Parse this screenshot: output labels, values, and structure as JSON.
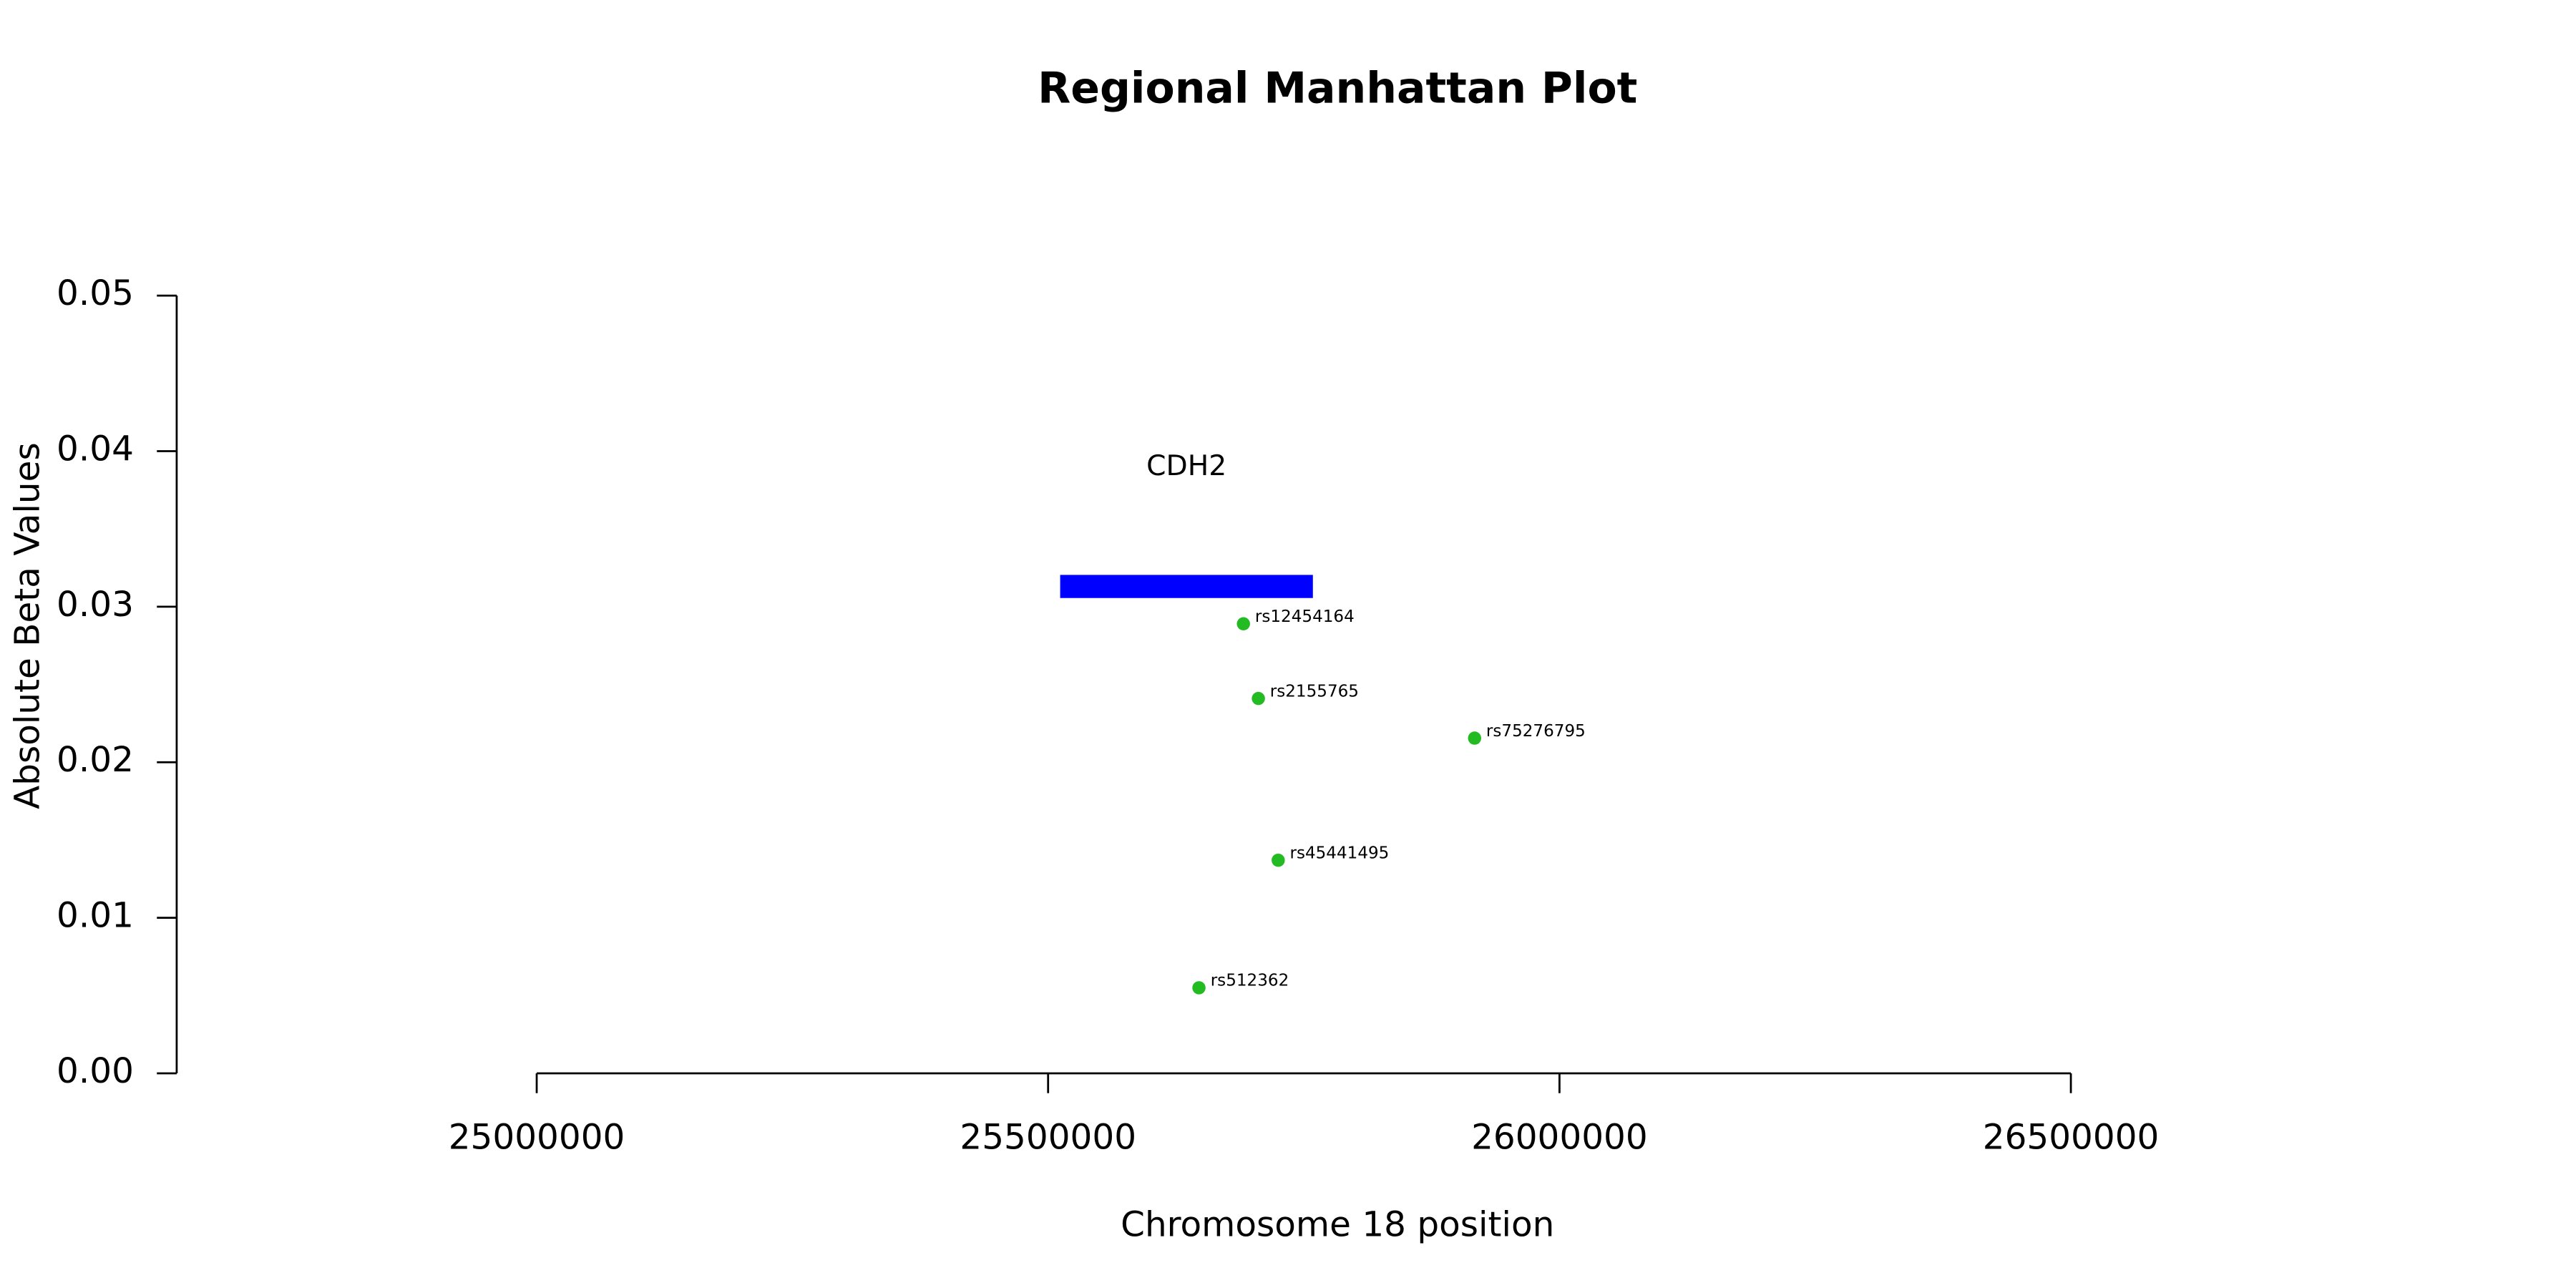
{
  "chart_data": {
    "type": "scatter",
    "title": "Regional Manhattan Plot",
    "x_label": "Chromosome 18 position",
    "y_label": "Absolute Beta Values",
    "xlim": [
      24648000,
      26918000
    ],
    "xticks": [
      25000000,
      25500000,
      26000000,
      26500000
    ],
    "ylim": [
      0,
      0.05
    ],
    "yticks": [
      {
        "value": 0,
        "label": "0.00"
      },
      {
        "value": 0.01,
        "label": "0.01"
      },
      {
        "value": 0.02,
        "label": "0.02"
      },
      {
        "value": 0.03,
        "label": "0.03"
      },
      {
        "value": 0.04,
        "label": "0.04"
      },
      {
        "value": 0.05,
        "label": "0.05"
      }
    ],
    "color": "#22bb22",
    "gene": {
      "name": "CDH2",
      "start": 25511800,
      "end": 25758900,
      "y": 0.0313,
      "color": "#0000ff"
    },
    "labels": [
      "rs12454164",
      "rs2155765",
      "rs75276795",
      "rs45441495",
      "rs512362"
    ],
    "x": [
      25691000,
      25705600,
      25917000,
      25725000,
      25647500
    ],
    "values": [
      0.0289,
      0.0241,
      0.02155,
      0.0137,
      0.0055
    ]
  }
}
